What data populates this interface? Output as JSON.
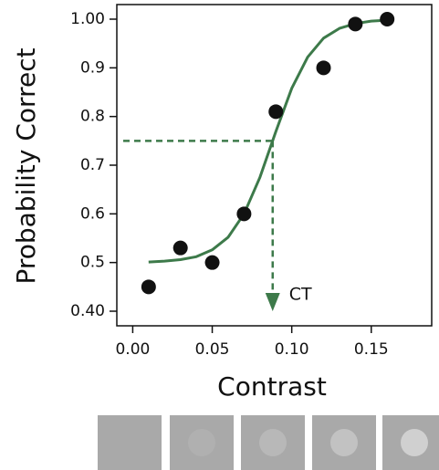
{
  "chart_data": {
    "type": "scatter",
    "x_label": "Contrast",
    "y_label": "Probability Correct",
    "x": [
      0.01,
      0.03,
      0.05,
      0.07,
      0.09,
      0.12,
      0.14,
      0.16
    ],
    "values": [
      0.45,
      0.53,
      0.5,
      0.6,
      0.81,
      0.9,
      0.99,
      1.0
    ],
    "color": "#111111",
    "fit": {
      "color": "#3d7a4a",
      "x": [
        0.01,
        0.02,
        0.03,
        0.04,
        0.05,
        0.06,
        0.07,
        0.08,
        0.09,
        0.1,
        0.11,
        0.12,
        0.13,
        0.14,
        0.15,
        0.16
      ],
      "values": [
        0.501,
        0.503,
        0.506,
        0.512,
        0.526,
        0.552,
        0.6,
        0.675,
        0.769,
        0.858,
        0.922,
        0.961,
        0.981,
        0.991,
        0.996,
        0.998
      ]
    },
    "threshold": {
      "x": 0.088,
      "y": 0.75,
      "label": "CT"
    },
    "xlim": [
      -0.01,
      0.188
    ],
    "ylim": [
      0.37,
      1.03
    ],
    "xticks": [
      {
        "value": 0,
        "label": "0.00"
      },
      0.05,
      {
        "value": 0.1,
        "label": "0.10"
      },
      0.15
    ],
    "yticks": [
      {
        "value": 0.4,
        "label": "0.40"
      },
      0.5,
      0.6,
      0.7,
      0.8,
      0.9,
      {
        "value": 1,
        "label": "1.00"
      }
    ]
  }
}
